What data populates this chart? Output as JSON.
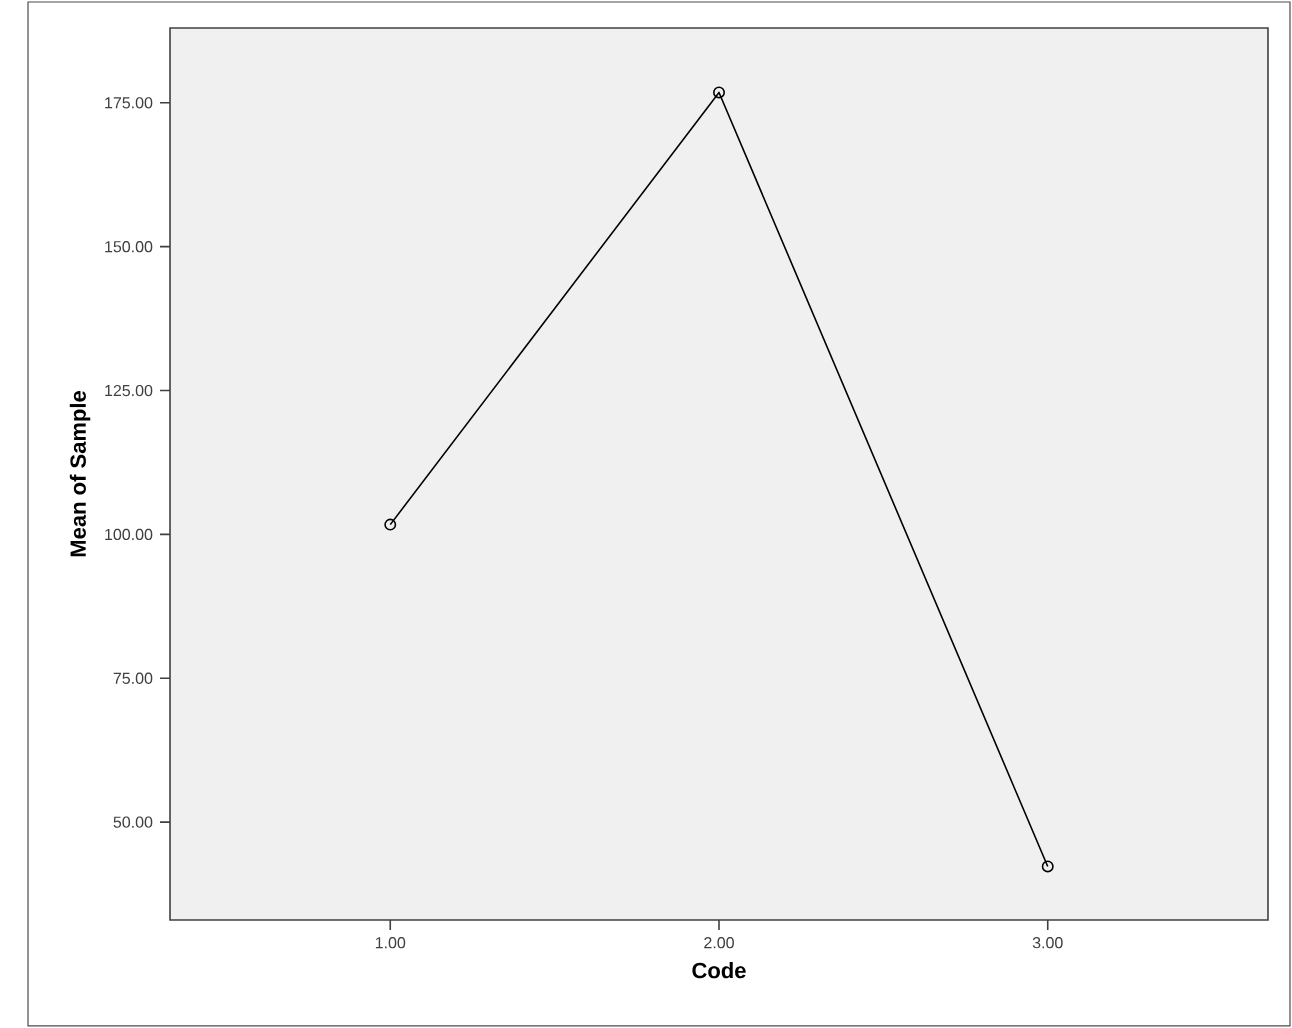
{
  "chart_data": {
    "type": "line",
    "xlabel": "Code",
    "ylabel": "Mean of Sample",
    "categories": [
      "1.00",
      "2.00",
      "3.00"
    ],
    "series": [
      {
        "color": "#000000",
        "values": [
          101.7,
          176.8,
          42.3
        ]
      }
    ],
    "ylim": [
      33,
      188
    ],
    "yticks": [
      {
        "value": 50,
        "label": "50.00"
      },
      {
        "value": 75,
        "label": "75.00"
      },
      {
        "value": 100,
        "label": "100.00"
      },
      {
        "value": 125,
        "label": "125.00"
      },
      {
        "value": 150,
        "label": "150.00"
      },
      {
        "value": 175,
        "label": "175.00"
      }
    ],
    "marker": "circle",
    "line_style": "solid",
    "grid": false
  }
}
